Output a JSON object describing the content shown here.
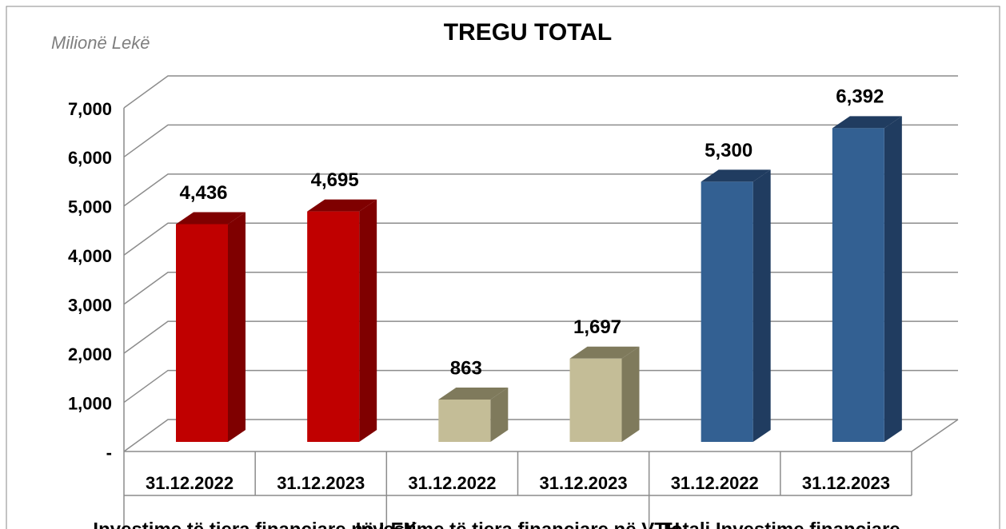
{
  "chart_data": {
    "type": "bar3d",
    "title": "TREGU TOTAL",
    "y_label": "Milionë Lekë",
    "categories": [
      "31.12.2022",
      "31.12.2023",
      "31.12.2022",
      "31.12.2023",
      "31.12.2022",
      "31.12.2023"
    ],
    "groups": [
      "Investime të tjera financiare në LEK",
      "Investime të tjera financiare në VTH",
      "Totali Investime financiare"
    ],
    "colors": [
      "#c00000",
      "#c4bd97",
      "#336092"
    ],
    "side_colors": [
      "#7f0000",
      "#7f7a5c",
      "#203c60"
    ],
    "values": [
      4436,
      4695,
      863,
      1697,
      5300,
      6392
    ],
    "value_labels": [
      "4,436",
      "4,695",
      "863",
      "1,697",
      "5,300",
      "6,392"
    ],
    "ylim": [
      0,
      7000
    ],
    "yticks": [
      {
        "value": 0,
        "label": "-"
      },
      {
        "value": 1000,
        "label": "1,000"
      },
      {
        "value": 2000,
        "label": "2,000"
      },
      {
        "value": 3000,
        "label": "3,000"
      },
      {
        "value": 4000,
        "label": "4,000"
      },
      {
        "value": 5000,
        "label": "5,000"
      },
      {
        "value": 6000,
        "label": "6,000"
      },
      {
        "value": 7000,
        "label": "7,000"
      }
    ],
    "grid": true
  }
}
